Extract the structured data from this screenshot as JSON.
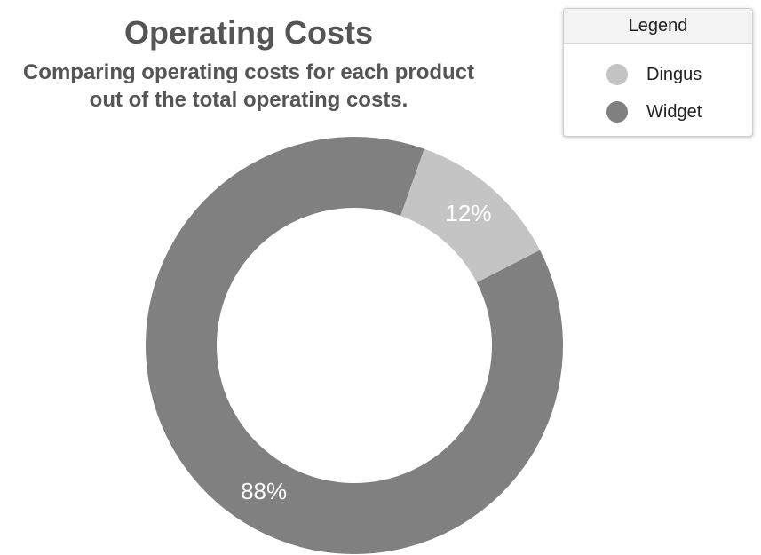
{
  "chart_data": {
    "type": "pie",
    "variant": "donut",
    "title": "Operating Costs",
    "subtitle_lines": [
      "Comparing operating costs for each product",
      "out of the total operating costs."
    ],
    "legend": {
      "title": "Legend",
      "position": "top-right"
    },
    "slices": [
      {
        "name": "Dingus",
        "value": 12,
        "label": "12%",
        "color": "#c4c4c4"
      },
      {
        "name": "Widget",
        "value": 88,
        "label": "88%",
        "color": "#808080"
      }
    ]
  }
}
